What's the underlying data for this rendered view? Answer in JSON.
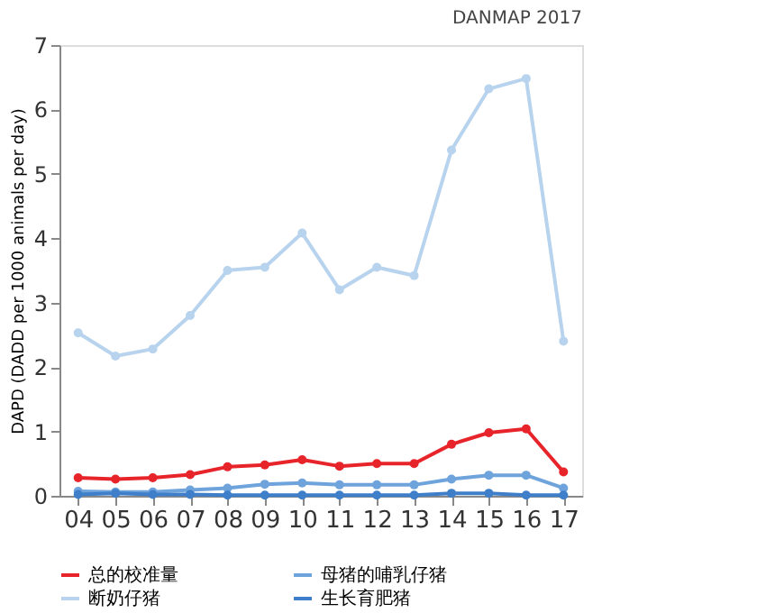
{
  "chart_data": {
    "type": "line",
    "title": "DANMAP 2017",
    "ylabel": "DAPD (DADD per 1000 animals per day)",
    "categories": [
      "04",
      "05",
      "06",
      "07",
      "08",
      "09",
      "10",
      "11",
      "12",
      "13",
      "14",
      "15",
      "16",
      "17"
    ],
    "ylim": [
      0,
      7
    ],
    "yticks": [
      0,
      1,
      2,
      3,
      4,
      5,
      6,
      7
    ],
    "grid": false,
    "legend": "bottom",
    "marker": "circle",
    "line_style": "solid",
    "series": [
      {
        "name": "总的校准量",
        "color": "#e8242b",
        "values": [
          0.28,
          0.26,
          0.28,
          0.33,
          0.45,
          0.48,
          0.56,
          0.46,
          0.5,
          0.5,
          0.8,
          0.98,
          1.04,
          0.37
        ]
      },
      {
        "name": "母猪的哺乳仔猪",
        "color": "#6fa3dc",
        "values": [
          0.07,
          0.06,
          0.06,
          0.09,
          0.12,
          0.18,
          0.2,
          0.17,
          0.17,
          0.17,
          0.26,
          0.32,
          0.32,
          0.12
        ]
      },
      {
        "name": "断奶仔猪",
        "color": "#b8d3ee",
        "values": [
          2.53,
          2.17,
          2.28,
          2.8,
          3.5,
          3.55,
          4.08,
          3.2,
          3.55,
          3.42,
          5.37,
          6.32,
          6.48,
          2.4
        ]
      },
      {
        "name": "生长育肥猪",
        "color": "#3f7fca",
        "values": [
          0.02,
          0.04,
          0.02,
          0.02,
          0.01,
          0.01,
          0.01,
          0.01,
          0.01,
          0.01,
          0.04,
          0.04,
          0.01,
          0.01
        ]
      }
    ]
  }
}
